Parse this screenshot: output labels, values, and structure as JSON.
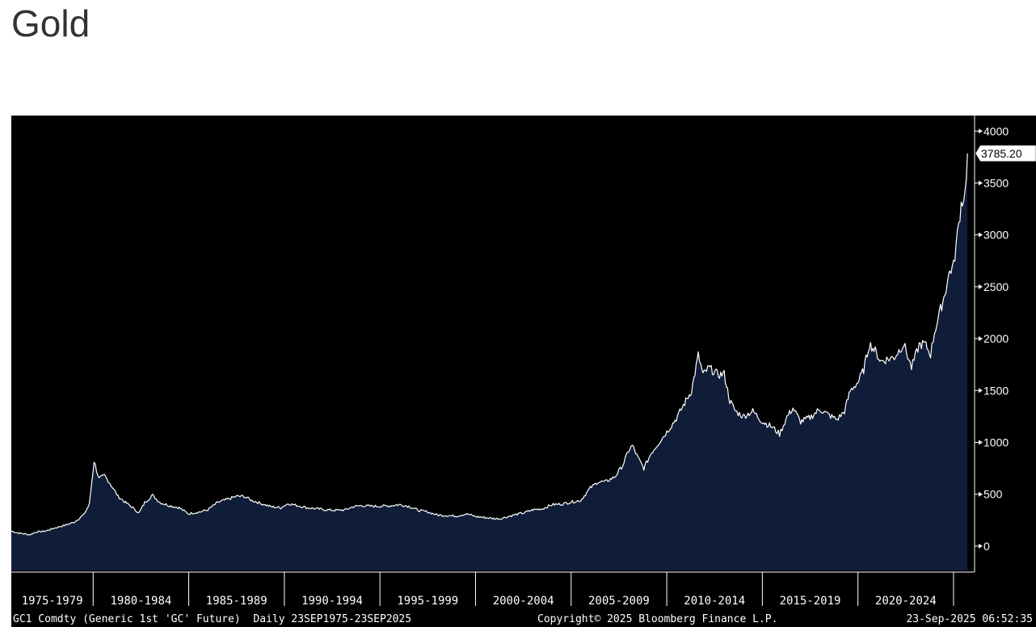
{
  "page": {
    "title": "Gold"
  },
  "colors": {
    "plot_background": "#000000",
    "area_fill": "#0f1d38",
    "line": "#ffffff",
    "axis_text": "#ffffff"
  },
  "chart_data": {
    "type": "area",
    "title": "",
    "xlabel": "",
    "ylabel": "",
    "ylim": [
      -250,
      4150
    ],
    "xlim": [
      1975.72,
      2026.1
    ],
    "y_ticks": [
      0,
      500,
      1000,
      1500,
      2000,
      2500,
      3000,
      3500,
      4000
    ],
    "x_period_labels": [
      {
        "label": "1975-1979",
        "start": 1975,
        "end": 1980
      },
      {
        "label": "1980-1984",
        "start": 1980,
        "end": 1985
      },
      {
        "label": "1985-1989",
        "start": 1985,
        "end": 1990
      },
      {
        "label": "1990-1994",
        "start": 1990,
        "end": 1995
      },
      {
        "label": "1995-1999",
        "start": 1995,
        "end": 2000
      },
      {
        "label": "2000-2004",
        "start": 2000,
        "end": 2005
      },
      {
        "label": "2005-2009",
        "start": 2005,
        "end": 2010
      },
      {
        "label": "2010-2014",
        "start": 2010,
        "end": 2015
      },
      {
        "label": "2015-2019",
        "start": 2015,
        "end": 2020
      },
      {
        "label": "2020-2024",
        "start": 2020,
        "end": 2025
      }
    ],
    "last_value_label": "3785.20",
    "last_value": 3785.2,
    "grid": false,
    "series": [
      {
        "x": [
          1975.72,
          1976.0,
          1976.3,
          1976.7,
          1977.0,
          1977.5,
          1978.0,
          1978.5,
          1979.0,
          1979.5,
          1979.8,
          1980.05,
          1980.3,
          1980.6,
          1980.9,
          1981.3,
          1981.7,
          1982.0,
          1982.4,
          1982.7,
          1983.1,
          1983.5,
          1984.0,
          1984.5,
          1985.0,
          1985.2,
          1985.6,
          1986.0,
          1986.5,
          1987.0,
          1987.5,
          1987.9,
          1988.3,
          1988.8,
          1989.3,
          1989.8,
          1990.2,
          1990.7,
          1991.2,
          1991.7,
          1992.2,
          1992.7,
          1993.2,
          1993.6,
          1994.0,
          1994.5,
          1995.0,
          1995.5,
          1996.0,
          1996.5,
          1997.0,
          1997.5,
          1998.0,
          1998.5,
          1999.0,
          1999.5,
          1999.75,
          2000.0,
          2000.5,
          2001.0,
          2001.3,
          2001.7,
          2002.0,
          2002.5,
          2003.0,
          2003.5,
          2004.0,
          2004.5,
          2005.0,
          2005.5,
          2006.0,
          2006.4,
          2006.8,
          2007.3,
          2007.7,
          2008.0,
          2008.2,
          2008.5,
          2008.8,
          2009.2,
          2009.6,
          2010.0,
          2010.5,
          2011.0,
          2011.3,
          2011.65,
          2011.9,
          2012.2,
          2012.7,
          2013.0,
          2013.3,
          2013.6,
          2014.0,
          2014.5,
          2015.0,
          2015.5,
          2015.9,
          2016.3,
          2016.6,
          2017.0,
          2017.5,
          2018.0,
          2018.5,
          2018.9,
          2019.3,
          2019.6,
          2020.0,
          2020.3,
          2020.6,
          2020.9,
          2021.2,
          2021.5,
          2021.9,
          2022.2,
          2022.4,
          2022.8,
          2023.2,
          2023.5,
          2023.8,
          2024.0,
          2024.2,
          2024.5,
          2024.8,
          2025.0,
          2025.2,
          2025.4,
          2025.6,
          2025.73
        ],
        "y": [
          145,
          130,
          120,
          110,
          135,
          145,
          175,
          200,
          230,
          300,
          400,
          820,
          650,
          680,
          600,
          480,
          420,
          380,
          320,
          420,
          490,
          420,
          390,
          370,
          310,
          320,
          330,
          350,
          420,
          450,
          480,
          480,
          440,
          410,
          380,
          370,
          410,
          390,
          370,
          360,
          350,
          345,
          350,
          380,
          390,
          385,
          385,
          388,
          400,
          385,
          345,
          330,
          300,
          295,
          290,
          310,
          300,
          285,
          275,
          265,
          265,
          285,
          300,
          320,
          350,
          360,
          400,
          405,
          425,
          440,
          560,
          620,
          620,
          670,
          780,
          920,
          970,
          850,
          750,
          900,
          1000,
          1100,
          1230,
          1400,
          1500,
          1840,
          1650,
          1720,
          1650,
          1660,
          1400,
          1300,
          1250,
          1300,
          1200,
          1150,
          1080,
          1250,
          1330,
          1200,
          1240,
          1320,
          1260,
          1220,
          1300,
          1500,
          1580,
          1700,
          1950,
          1880,
          1780,
          1800,
          1820,
          1900,
          1950,
          1720,
          1940,
          1950,
          1850,
          2060,
          2200,
          2400,
          2650,
          2700,
          3000,
          3300,
          3400,
          3785
        ]
      }
    ]
  },
  "footer": {
    "left": "GC1 Comdty (Generic 1st 'GC' Future)  Daily 23SEP1975-23SEP2025",
    "center": "Copyright© 2025 Bloomberg Finance L.P.",
    "right": "23-Sep-2025 06:52:35"
  }
}
